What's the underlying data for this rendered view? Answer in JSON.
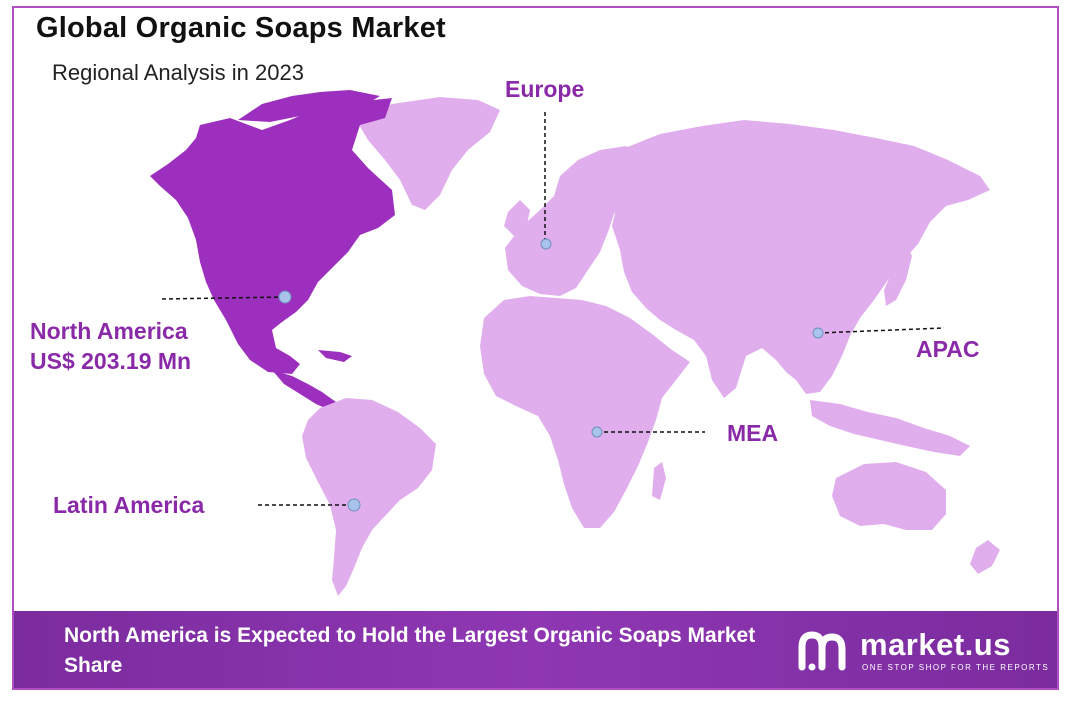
{
  "header": {
    "title": "Global Organic Soaps Market",
    "subtitle": "Regional Analysis in 2023"
  },
  "regions": [
    {
      "name": "North America",
      "value": "US$ 203.19 Mn",
      "highlighted": true
    },
    {
      "name": "Europe",
      "highlighted": false
    },
    {
      "name": "APAC",
      "highlighted": false
    },
    {
      "name": "MEA",
      "highlighted": false
    },
    {
      "name": "Latin America",
      "highlighted": false
    }
  ],
  "footer": {
    "headline": "North America is Expected to Hold the Largest Organic Soaps Market Share",
    "brand": "market.us",
    "tagline": "ONE STOP SHOP FOR THE REPORTS"
  },
  "colors": {
    "highlight_region": "#9d2fbf",
    "other_regions": "#e1aeed",
    "label": "#8a2aa8",
    "footer_bg": "#8a35ad",
    "frame_border": "#b04fc4",
    "marker": "#a9c4ea"
  }
}
